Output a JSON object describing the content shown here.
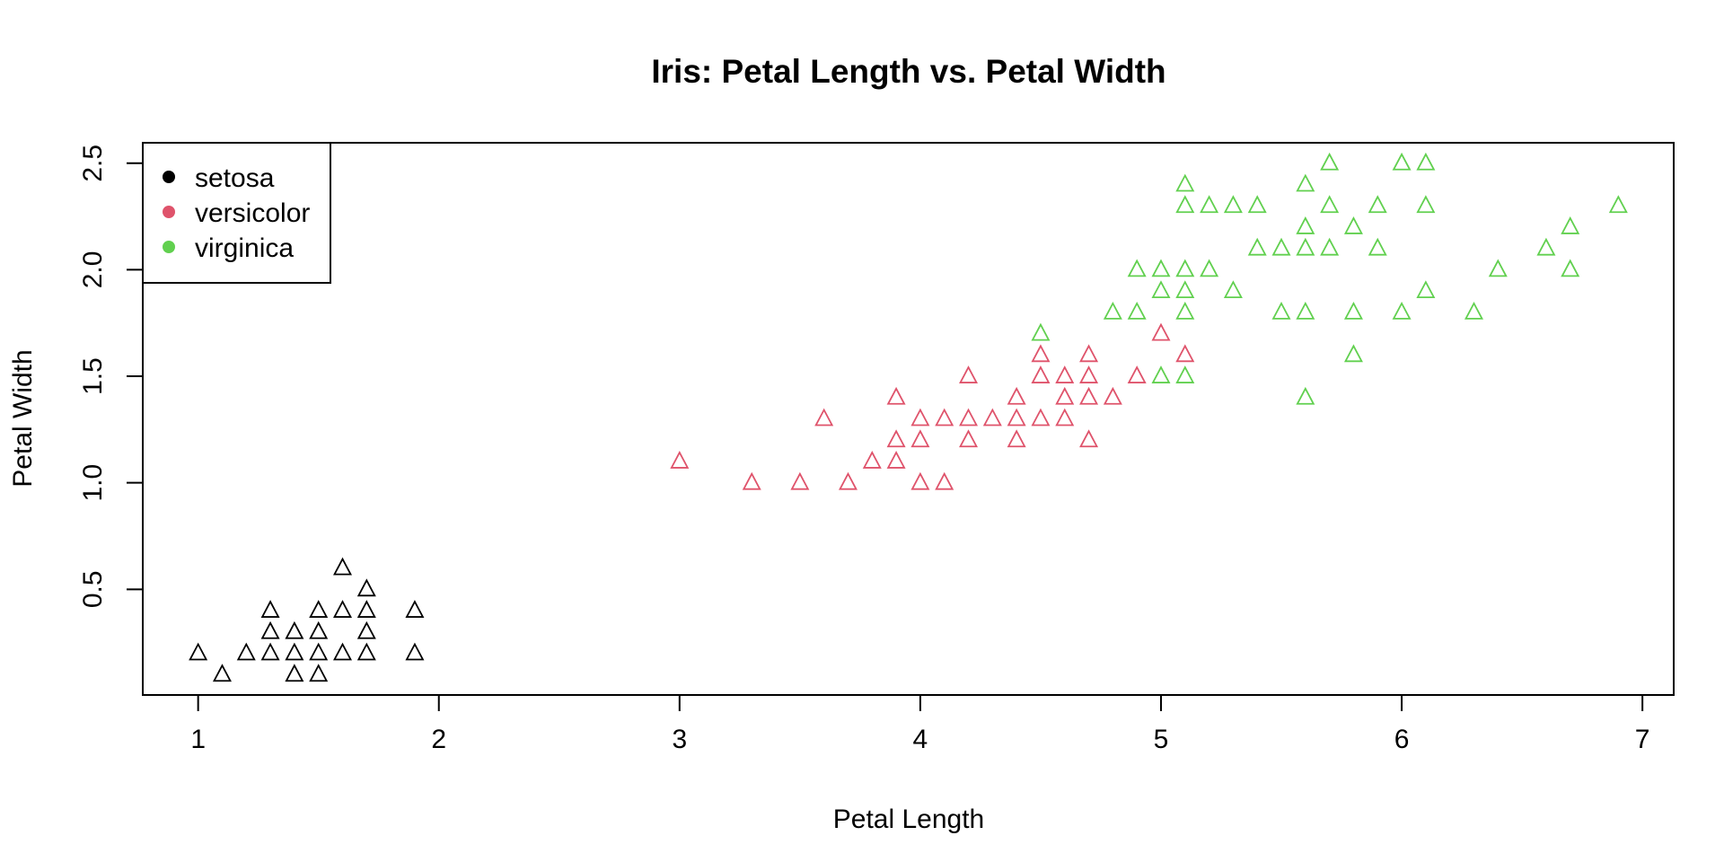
{
  "chart_data": {
    "type": "scatter",
    "title": "Iris: Petal Length vs. Petal Width",
    "xlabel": "Petal Length",
    "ylabel": "Petal Width",
    "xlim": [
      0.77,
      7.13
    ],
    "ylim": [
      0.004,
      2.596
    ],
    "x_ticks": [
      1,
      2,
      3,
      4,
      5,
      6,
      7
    ],
    "x_tick_labels": [
      "1",
      "2",
      "3",
      "4",
      "5",
      "6",
      "7"
    ],
    "y_ticks": [
      0.5,
      1.0,
      1.5,
      2.0,
      2.5
    ],
    "y_tick_labels": [
      "0.5",
      "1.0",
      "1.5",
      "2.0",
      "2.5"
    ],
    "grid": false,
    "marker": "open-triangle",
    "legend": {
      "position": "top-left",
      "marker": "filled-circle"
    },
    "series": [
      {
        "name": "setosa",
        "color": "#000000",
        "points": [
          [
            1.0,
            0.2
          ],
          [
            1.1,
            0.1
          ],
          [
            1.2,
            0.2
          ],
          [
            1.3,
            0.2
          ],
          [
            1.3,
            0.3
          ],
          [
            1.3,
            0.4
          ],
          [
            1.4,
            0.1
          ],
          [
            1.4,
            0.2
          ],
          [
            1.4,
            0.3
          ],
          [
            1.5,
            0.1
          ],
          [
            1.5,
            0.2
          ],
          [
            1.5,
            0.3
          ],
          [
            1.5,
            0.4
          ],
          [
            1.6,
            0.2
          ],
          [
            1.6,
            0.4
          ],
          [
            1.6,
            0.6
          ],
          [
            1.7,
            0.2
          ],
          [
            1.7,
            0.3
          ],
          [
            1.7,
            0.4
          ],
          [
            1.7,
            0.5
          ],
          [
            1.9,
            0.2
          ],
          [
            1.9,
            0.4
          ]
        ]
      },
      {
        "name": "versicolor",
        "color": "#DF536B",
        "points": [
          [
            3.0,
            1.1
          ],
          [
            3.3,
            1.0
          ],
          [
            3.5,
            1.0
          ],
          [
            3.6,
            1.3
          ],
          [
            3.7,
            1.0
          ],
          [
            3.8,
            1.1
          ],
          [
            3.9,
            1.1
          ],
          [
            3.9,
            1.2
          ],
          [
            3.9,
            1.4
          ],
          [
            4.0,
            1.0
          ],
          [
            4.0,
            1.2
          ],
          [
            4.0,
            1.3
          ],
          [
            4.1,
            1.0
          ],
          [
            4.1,
            1.3
          ],
          [
            4.2,
            1.2
          ],
          [
            4.2,
            1.3
          ],
          [
            4.2,
            1.5
          ],
          [
            4.3,
            1.3
          ],
          [
            4.4,
            1.2
          ],
          [
            4.4,
            1.3
          ],
          [
            4.4,
            1.4
          ],
          [
            4.5,
            1.3
          ],
          [
            4.5,
            1.5
          ],
          [
            4.5,
            1.6
          ],
          [
            4.6,
            1.3
          ],
          [
            4.6,
            1.4
          ],
          [
            4.6,
            1.5
          ],
          [
            4.7,
            1.2
          ],
          [
            4.7,
            1.4
          ],
          [
            4.7,
            1.5
          ],
          [
            4.7,
            1.6
          ],
          [
            4.8,
            1.4
          ],
          [
            4.9,
            1.5
          ],
          [
            5.0,
            1.7
          ],
          [
            5.1,
            1.6
          ]
        ]
      },
      {
        "name": "virginica",
        "color": "#61D04F",
        "points": [
          [
            4.5,
            1.7
          ],
          [
            4.8,
            1.8
          ],
          [
            4.9,
            1.8
          ],
          [
            4.9,
            2.0
          ],
          [
            5.0,
            1.5
          ],
          [
            5.0,
            1.9
          ],
          [
            5.0,
            2.0
          ],
          [
            5.1,
            1.5
          ],
          [
            5.1,
            1.8
          ],
          [
            5.1,
            1.9
          ],
          [
            5.1,
            2.0
          ],
          [
            5.1,
            2.3
          ],
          [
            5.1,
            2.4
          ],
          [
            5.2,
            2.0
          ],
          [
            5.2,
            2.3
          ],
          [
            5.3,
            1.9
          ],
          [
            5.3,
            2.3
          ],
          [
            5.4,
            2.1
          ],
          [
            5.4,
            2.3
          ],
          [
            5.5,
            1.8
          ],
          [
            5.5,
            2.1
          ],
          [
            5.6,
            1.4
          ],
          [
            5.6,
            1.8
          ],
          [
            5.6,
            2.1
          ],
          [
            5.6,
            2.2
          ],
          [
            5.6,
            2.4
          ],
          [
            5.7,
            2.1
          ],
          [
            5.7,
            2.3
          ],
          [
            5.7,
            2.5
          ],
          [
            5.8,
            1.6
          ],
          [
            5.8,
            1.8
          ],
          [
            5.8,
            2.2
          ],
          [
            5.9,
            2.1
          ],
          [
            5.9,
            2.3
          ],
          [
            6.0,
            1.8
          ],
          [
            6.0,
            2.5
          ],
          [
            6.1,
            1.9
          ],
          [
            6.1,
            2.3
          ],
          [
            6.1,
            2.5
          ],
          [
            6.3,
            1.8
          ],
          [
            6.4,
            2.0
          ],
          [
            6.6,
            2.1
          ],
          [
            6.7,
            2.0
          ],
          [
            6.7,
            2.2
          ],
          [
            6.9,
            2.3
          ]
        ]
      }
    ]
  }
}
